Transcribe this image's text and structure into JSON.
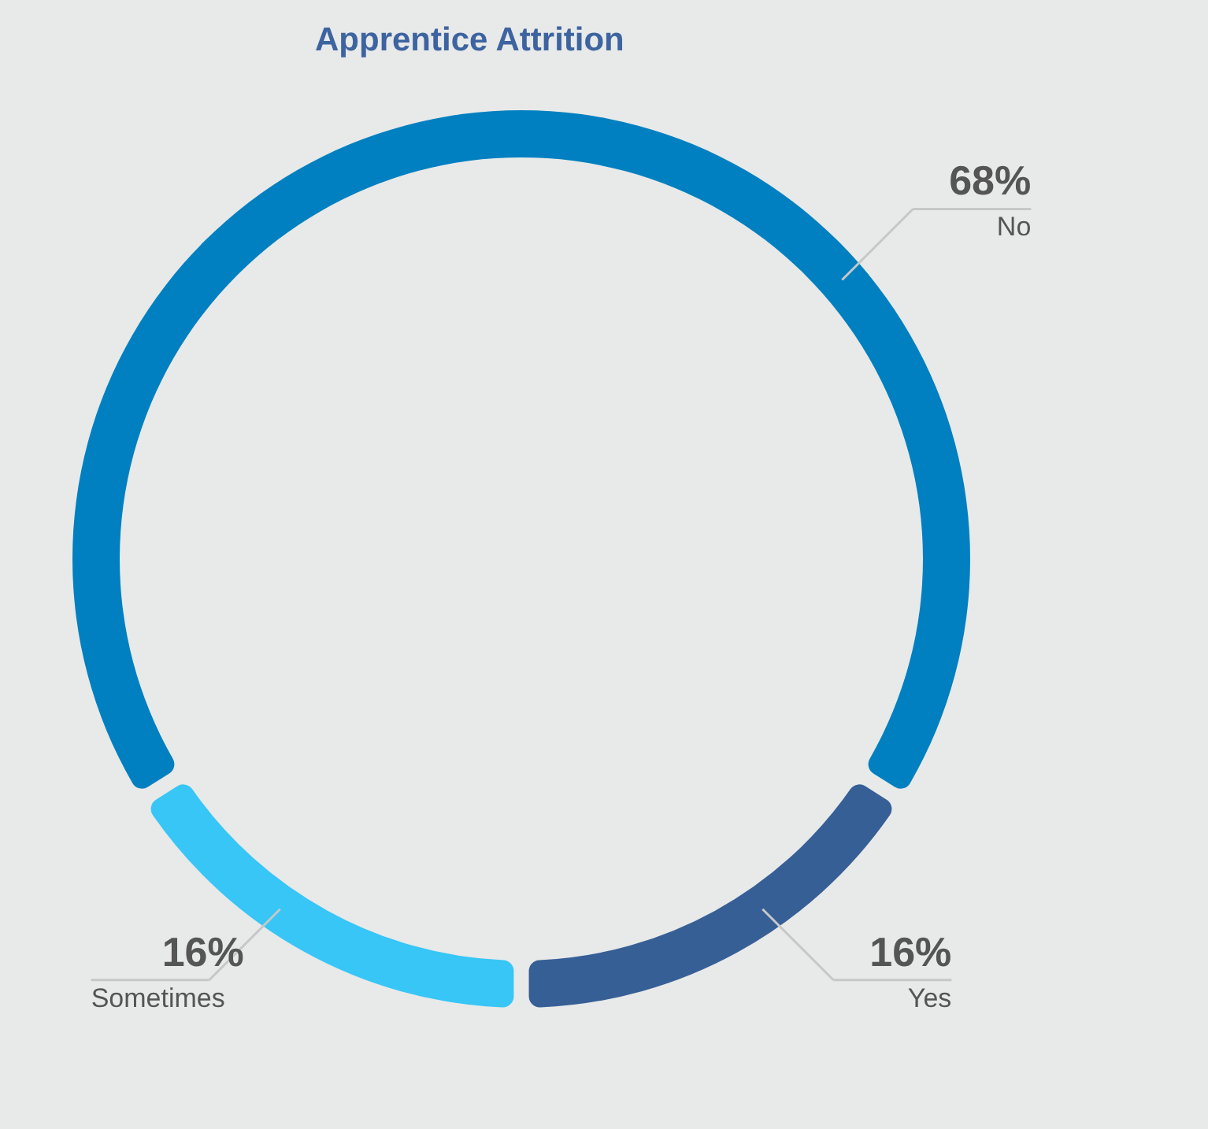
{
  "chart_data": {
    "type": "donut",
    "title": "Apprentice Attrition",
    "categories": [
      "No",
      "Yes",
      "Sometimes"
    ],
    "values": [
      68,
      16,
      16
    ],
    "colors": [
      "#0080c0",
      "#365f96",
      "#37c6f5"
    ],
    "value_labels": [
      "68%",
      "16%",
      "16%"
    ],
    "legend": false
  }
}
